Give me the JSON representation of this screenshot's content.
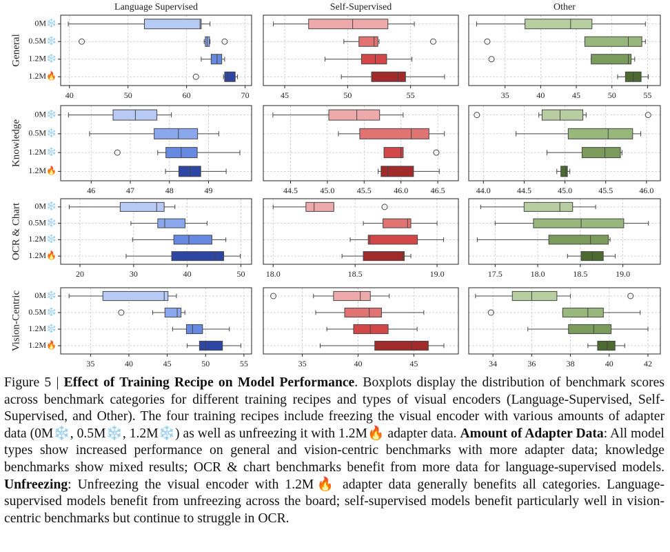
{
  "chart_data": [
    {
      "type": "box",
      "title": "Language Supervised",
      "ylabel": "General",
      "categories": [
        "0M❄️",
        "0.5M❄️",
        "1.2M❄️",
        "1.2M🔥"
      ],
      "colors": [
        "#b7c9f5",
        "#8ba8ef",
        "#6689e1",
        "#2e46a3"
      ],
      "xlim": [
        38.5,
        71.1
      ],
      "xticks": [
        40,
        50,
        60,
        70
      ],
      "grid": true,
      "boxes": [
        {
          "min": 39.8,
          "q1": 52.8,
          "median": 62.3,
          "q3": 62.5,
          "max": 64
        },
        {
          "min": 63,
          "q1": 63.2,
          "median": 63.5,
          "q3": 63.9,
          "max": 64,
          "outliers": [
            42.1,
            66.5
          ]
        },
        {
          "min": 62.5,
          "q1": 64.2,
          "median": 65.2,
          "q3": 66,
          "max": 66.5
        },
        {
          "min": 66.3,
          "q1": 66.5,
          "median": 67,
          "q3": 68.3,
          "max": 68.7,
          "outliers": [
            61.6
          ]
        }
      ]
    },
    {
      "type": "box",
      "title": "Self-Supervised",
      "colors": [
        "#eeaaaa",
        "#e27373",
        "#d24848",
        "#a12b2b"
      ],
      "xlim": [
        43.3,
        58.8
      ],
      "xticks": [
        45,
        50,
        55
      ],
      "grid": true,
      "boxes": [
        {
          "min": 44.1,
          "q1": 46.9,
          "median": 50.4,
          "q3": 53.2,
          "max": 55.3
        },
        {
          "min": 49.7,
          "q1": 50.9,
          "median": 52.1,
          "q3": 52.4,
          "max": 52.5,
          "outliers": [
            56.8
          ]
        },
        {
          "min": 48.2,
          "q1": 51.1,
          "median": 52.2,
          "q3": 53.1,
          "max": 55.1
        },
        {
          "min": 49.5,
          "q1": 51.9,
          "median": 54.0,
          "q3": 54.6,
          "max": 57.7
        }
      ]
    },
    {
      "type": "box",
      "title": "Other",
      "colors": [
        "#b7cea1",
        "#97b77c",
        "#7a9b5c",
        "#4d6b31"
      ],
      "xlim": [
        29.9,
        56.8
      ],
      "xticks": [
        35,
        40,
        45,
        50,
        55
      ],
      "grid": true,
      "boxes": [
        {
          "min": 31.0,
          "q1": 37.8,
          "median": 44.2,
          "q3": 47.2,
          "max": 54.7
        },
        {
          "min": 46.2,
          "q1": 46.2,
          "median": 52.3,
          "q3": 54.2,
          "max": 54.7,
          "outliers": [
            32.5
          ]
        },
        {
          "min": 47.1,
          "q1": 47.1,
          "median": 52.3,
          "q3": 52.7,
          "max": 53.2,
          "outliers": [
            33.1
          ]
        },
        {
          "min": 50.8,
          "q1": 51.9,
          "median": 53.0,
          "q3": 54.1,
          "max": 55.1
        }
      ]
    },
    {
      "type": "box",
      "ylabel": "Knowledge",
      "categories": [
        "0M❄️",
        "0.5M❄️",
        "1.2M❄️",
        "1.2M🔥"
      ],
      "colors": [
        "#b7c9f5",
        "#8ba8ef",
        "#6689e1",
        "#2e46a3"
      ],
      "xlim": [
        45.22,
        50.1
      ],
      "xticks": [
        46,
        47,
        48,
        49
      ],
      "grid": true,
      "boxes": [
        {
          "min": 45.42,
          "q1": 46.56,
          "median": 47.13,
          "q3": 47.68,
          "max": 48.05
        },
        {
          "min": 45.96,
          "q1": 47.61,
          "median": 48.23,
          "q3": 48.72,
          "max": 49.26
        },
        {
          "min": 47.7,
          "q1": 47.91,
          "median": 48.3,
          "q3": 48.71,
          "max": 49.8,
          "outliers": [
            46.67
          ]
        },
        {
          "min": 47.9,
          "q1": 48.24,
          "median": 48.53,
          "q3": 48.8,
          "max": 49.45
        }
      ]
    },
    {
      "type": "box",
      "colors": [
        "#eeaaaa",
        "#e27373",
        "#d24848",
        "#a12b2b"
      ],
      "xlim": [
        44.13,
        46.78
      ],
      "xticks": [
        44.5,
        {
          "value": 45,
          "label": "45.0"
        },
        45.5,
        {
          "value": 46,
          "label": "46.0"
        },
        46.5
      ],
      "grid": true,
      "boxes": [
        {
          "min": 44.26,
          "q1": 45.02,
          "median": 45.4,
          "q3": 45.71,
          "max": 46.03
        },
        {
          "min": 45.15,
          "q1": 45.44,
          "median": 46.14,
          "q3": 46.38,
          "max": 46.59
        },
        {
          "min": 45.77,
          "q1": 45.77,
          "median": 46.0,
          "q3": 46.03,
          "max": 46.03,
          "outliers": [
            46.48
          ]
        },
        {
          "min": 45.69,
          "q1": 45.73,
          "median": 45.82,
          "q3": 46.17,
          "max": 46.52
        }
      ]
    },
    {
      "type": "box",
      "colors": [
        "#b7cea1",
        "#97b77c",
        "#7a9b5c",
        "#4d6b31"
      ],
      "xlim": [
        43.82,
        46.17
      ],
      "xticks": [
        {
          "value": 44,
          "label": "44.0"
        },
        44.5,
        {
          "value": 45,
          "label": "45.0"
        },
        45.5,
        {
          "value": 46,
          "label": "46.0"
        }
      ],
      "grid": true,
      "boxes": [
        {
          "min": 44.68,
          "q1": 44.72,
          "median": 44.94,
          "q3": 45.22,
          "max": 45.26,
          "outliers": [
            43.92,
            46.02
          ]
        },
        {
          "min": 44.4,
          "q1": 45.04,
          "median": 45.53,
          "q3": 45.83,
          "max": 45.93
        },
        {
          "min": 44.78,
          "q1": 45.21,
          "median": 45.49,
          "q3": 45.68,
          "max": 45.7
        },
        {
          "min": 44.9,
          "q1": 44.95,
          "median": 45.01,
          "q3": 45.03,
          "max": 45.06
        }
      ]
    },
    {
      "type": "box",
      "ylabel": "OCR & Chart",
      "categories": [
        "0M❄️",
        "0.5M❄️",
        "1.2M❄️",
        "1.2M🔥"
      ],
      "colors": [
        "#b7c9f5",
        "#8ba8ef",
        "#6689e1",
        "#2e46a3"
      ],
      "xlim": [
        16.4,
        52.0
      ],
      "xticks": [
        20,
        30,
        40,
        50
      ],
      "grid": true,
      "boxes": [
        {
          "min": 18.0,
          "q1": 27.5,
          "median": 34.3,
          "q3": 35.7,
          "max": 37.7
        },
        {
          "min": 29.5,
          "q1": 34.5,
          "median": 35.8,
          "q3": 39.6,
          "max": 43.7
        },
        {
          "min": 29.8,
          "q1": 37.5,
          "median": 40.3,
          "q3": 44.6,
          "max": 47.2
        },
        {
          "min": 28.6,
          "q1": 37.1,
          "median": 45.2,
          "q3": 46.8,
          "max": 49.9
        }
      ]
    },
    {
      "type": "box",
      "colors": [
        "#eeaaaa",
        "#e27373",
        "#d24848",
        "#a12b2b"
      ],
      "xlim": [
        17.94,
        19.13
      ],
      "xticks": [
        {
          "value": 18,
          "label": "18.0"
        },
        18.5,
        {
          "value": 19,
          "label": "19.0"
        }
      ],
      "grid": true,
      "boxes": [
        {
          "min": 18.0,
          "q1": 18.2,
          "median": 18.25,
          "q3": 18.37,
          "max": 18.37,
          "outliers": [
            18.68
          ]
        },
        {
          "min": 18.55,
          "q1": 18.67,
          "median": 18.82,
          "q3": 18.84,
          "max": 19.0
        },
        {
          "min": 18.47,
          "q1": 18.58,
          "median": 18.59,
          "q3": 18.88,
          "max": 19.04
        },
        {
          "min": 18.42,
          "q1": 18.55,
          "median": 18.79,
          "q3": 18.8,
          "max": 18.84
        }
      ]
    },
    {
      "type": "box",
      "colors": [
        "#b7cea1",
        "#97b77c",
        "#7a9b5c",
        "#4d6b31"
      ],
      "xlim": [
        17.19,
        19.44
      ],
      "xticks": [
        17.5,
        {
          "value": 18,
          "label": "18.0"
        },
        18.5,
        {
          "value": 19,
          "label": "19.0"
        }
      ],
      "grid": true,
      "boxes": [
        {
          "min": 17.33,
          "q1": 17.84,
          "median": 18.26,
          "q3": 18.41,
          "max": 18.68
        },
        {
          "min": 17.5,
          "q1": 17.95,
          "median": 18.51,
          "q3": 19.01,
          "max": 19.3
        },
        {
          "min": 17.29,
          "q1": 18.13,
          "median": 18.62,
          "q3": 18.83,
          "max": 18.85
        },
        {
          "min": 18.35,
          "q1": 18.51,
          "median": 18.64,
          "q3": 18.77,
          "max": 18.91
        }
      ]
    },
    {
      "type": "box",
      "ylabel": "Vision-Centric",
      "categories": [
        "0M❄️",
        "0.5M❄️",
        "1.2M❄️",
        "1.2M🔥"
      ],
      "colors": [
        "#b7c9f5",
        "#8ba8ef",
        "#6689e1",
        "#2e46a3"
      ],
      "xlim": [
        31.1,
        56.0
      ],
      "xticks": [
        35,
        40,
        45,
        50,
        55
      ],
      "grid": true,
      "boxes": [
        {
          "min": 32.2,
          "q1": 36.6,
          "median": 44.6,
          "q3": 45.1,
          "max": 46.2
        },
        {
          "min": 43.1,
          "q1": 44.7,
          "median": 46.3,
          "q3": 46.8,
          "max": 47.3,
          "outliers": [
            39.0
          ]
        },
        {
          "min": 45.7,
          "q1": 47.5,
          "median": 48.3,
          "q3": 49.6,
          "max": 53.1
        },
        {
          "min": 47.6,
          "q1": 49.2,
          "median": 50.0,
          "q3": 52.2,
          "max": 54.6
        }
      ]
    },
    {
      "type": "box",
      "colors": [
        "#eeaaaa",
        "#e27373",
        "#d24848",
        "#a12b2b"
      ],
      "xlim": [
        31.5,
        49.0
      ],
      "xticks": [
        35,
        40,
        45
      ],
      "grid": true,
      "boxes": [
        {
          "min": 36.0,
          "q1": 37.8,
          "median": 40.2,
          "q3": 41.1,
          "max": 42.8,
          "outliers": [
            32.4
          ]
        },
        {
          "min": 36.2,
          "q1": 38.8,
          "median": 41.0,
          "q3": 42.1,
          "max": 45.9
        },
        {
          "min": 37.2,
          "q1": 39.6,
          "median": 41.1,
          "q3": 42.7,
          "max": 45.3
        },
        {
          "min": 36.6,
          "q1": 41.5,
          "median": 44.8,
          "q3": 46.3,
          "max": 47.7
        }
      ]
    },
    {
      "type": "box",
      "colors": [
        "#b7cea1",
        "#97b77c",
        "#7a9b5c",
        "#4d6b31"
      ],
      "xlim": [
        32.75,
        42.64
      ],
      "xticks": [
        34,
        36,
        38,
        40,
        42
      ],
      "grid": true,
      "boxes": [
        {
          "min": 33.1,
          "q1": 35.0,
          "median": 36.0,
          "q3": 37.3,
          "max": 38.0,
          "outliers": [
            41.1
          ]
        },
        {
          "min": 37.6,
          "q1": 37.6,
          "median": 38.9,
          "q3": 39.7,
          "max": 41.6,
          "outliers": [
            33.9
          ]
        },
        {
          "min": 35.8,
          "q1": 37.9,
          "median": 39.2,
          "q3": 40.1,
          "max": 42.0
        },
        {
          "min": 38.9,
          "q1": 39.4,
          "median": 39.9,
          "q3": 40.3,
          "max": 40.8
        }
      ]
    }
  ],
  "caption": [
    "Figure 5 |",
    "Effect of Training Recipe on Model Performance",
    ". Boxplots display the distribution of benchmark scores across benchmark categories for different training recipes and types of visual encoders (Language-Supervised, Self-Supervised, and Other). The four training recipes include freezing the visual encoder with various amounts of adapter data (0M❄️, 0.5M❄️, 1.2M❄️) as well as unfreezing it with 1.2M🔥 adapter data.",
    "Amount of Adapter Data",
    ": All model types show increased performance on general and vision-centric benchmarks with more adapter data; knowledge benchmarks show mixed results; OCR & chart benchmarks benefit from more data for language-supervised models.",
    "Unfreezing",
    ": Unfreezing the visual encoder with 1.2M🔥 adapter data generally benefits all categories. Language-supervised models benefit from unfreezing across the board; self-supervised models benefit particularly well in vision-centric benchmarks but continue to struggle in OCR."
  ]
}
